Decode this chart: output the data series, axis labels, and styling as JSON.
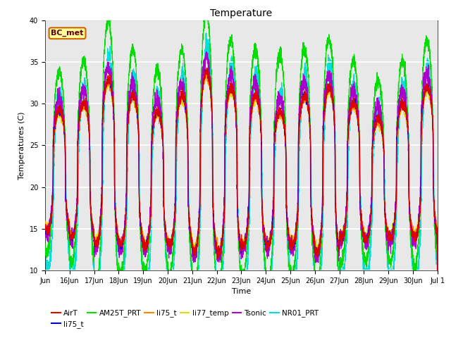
{
  "title": "Temperature",
  "xlabel": "Time",
  "ylabel": "Temperatures (C)",
  "ylim": [
    10,
    40
  ],
  "yticks": [
    10,
    15,
    20,
    25,
    30,
    35,
    40
  ],
  "annotation_text": "BC_met",
  "series_colors": {
    "AirT": "#dd0000",
    "li75_t_blue": "#0000cc",
    "AM25T_PRT": "#00dd00",
    "li75_t_orange": "#ff8800",
    "li77_temp": "#dddd00",
    "Tsonic": "#aa00cc",
    "NR01_PRT": "#00dddd"
  },
  "legend_entries": [
    {
      "label": "AirT",
      "color": "#dd0000"
    },
    {
      "label": "li75_t",
      "color": "#0000cc"
    },
    {
      "label": "AM25T_PRT",
      "color": "#00dd00"
    },
    {
      "label": "li75_t",
      "color": "#ff8800"
    },
    {
      "label": "li77_temp",
      "color": "#dddd00"
    },
    {
      "label": "Tsonic",
      "color": "#aa00cc"
    },
    {
      "label": "NR01_PRT",
      "color": "#00dddd"
    }
  ],
  "bg_color": "#e8e8e8",
  "fig_bg": "#ffffff",
  "grid_color": "#ffffff",
  "annotation_bg": "#ffff99",
  "annotation_border": "#cc6600"
}
